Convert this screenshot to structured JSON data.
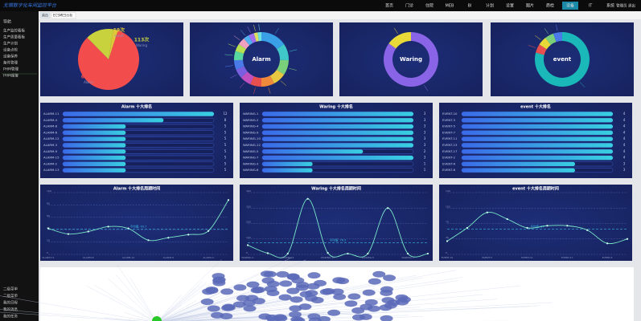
{
  "nav": {
    "title": "无锡数字化车间监控平台",
    "items": [
      "首页",
      "门诊",
      "住院",
      "MEB",
      "BI",
      "计划",
      "设置",
      "图片",
      "质检",
      "设备",
      "IT",
      "系统"
    ],
    "active": 9,
    "user": "管理员 退出"
  },
  "sidebar": {
    "header": "导航",
    "items": [
      "生产监控看板",
      "生产质量看板",
      "生产计划",
      "设备点检",
      "设备保养",
      "备件管理",
      "PHM管理",
      "PHM报警"
    ],
    "footer": [
      "二级菜单",
      "二级菜单",
      "我的日程",
      "我的消息",
      "我的任务"
    ]
  },
  "tabs": [
    "首页",
    "ECSMES分析"
  ],
  "pie": {
    "categories": [
      "Alarm",
      "Waring",
      "event"
    ],
    "values": [
      630,
      113,
      19
    ],
    "value_labels": [
      "630次",
      "113次",
      "19次"
    ],
    "colors": [
      "#f24c4c",
      "#c8d23c",
      "#e0c838"
    ]
  },
  "donuts": [
    {
      "title": "Alarm",
      "values": [
        14,
        9,
        8,
        7,
        7,
        6,
        6,
        5,
        5,
        5,
        4,
        4,
        3,
        3,
        2,
        2
      ],
      "colors": [
        "#3aa0e8",
        "#40c8c8",
        "#7ad07a",
        "#e8c840",
        "#f08a3a",
        "#e85050",
        "#c050c0",
        "#7a60e0",
        "#4a7ae8",
        "#58d8a0",
        "#b8e050",
        "#f0a0c0",
        "#50b0f0",
        "#a070f0",
        "#e0e060",
        "#70e0e0"
      ]
    },
    {
      "title": "Waring",
      "values": [
        96,
        17
      ],
      "colors": [
        "#8a64e6",
        "#e8d838"
      ]
    },
    {
      "title": "event",
      "values": [
        15,
        1,
        1,
        1,
        1
      ],
      "colors": [
        "#1ab8b8",
        "#e85050",
        "#e8d838",
        "#7ad07a",
        "#4a7ae8"
      ]
    }
  ],
  "rankings": [
    {
      "title": "Alarm 十大排名",
      "categories": [
        "ALARM-11",
        "ALARM-4",
        "ALARM-8",
        "ALARM-6",
        "ALARM-12",
        "ALARM-3",
        "ALARM-9",
        "ALARM-15",
        "ALARM-2",
        "ALARM-13"
      ],
      "values": [
        12,
        8,
        5,
        5,
        5,
        5,
        5,
        5,
        5,
        5
      ]
    },
    {
      "title": "Waring 十大排名",
      "categories": [
        "WARING-1",
        "WARING-2",
        "WARING-4",
        "WARING-9",
        "WARING-10",
        "WARING-12",
        "WARING-5",
        "WARING-7",
        "WARING-3",
        "WARING-6"
      ],
      "values": [
        3,
        3,
        3,
        3,
        3,
        3,
        2,
        3,
        1,
        1
      ]
    },
    {
      "title": "event 十大排名",
      "categories": [
        "EVENT-10",
        "EVENT-3",
        "EVENT-5",
        "EVENT-7",
        "EVENT-11",
        "EVENT-13",
        "EVENT-17",
        "EVENT-2",
        "EVENT-6",
        "EVENT-8"
      ],
      "values": [
        4,
        4,
        4,
        4,
        4,
        4,
        4,
        4,
        3,
        3
      ]
    }
  ],
  "trends": [
    {
      "title": "Alarm 十大排名周期时间",
      "values": [
        42,
        33,
        37,
        45,
        42,
        23,
        27,
        32,
        38,
        88
      ],
      "ylim": [
        0,
        100
      ],
      "yticks": [
        0,
        20,
        40,
        60,
        80,
        100
      ],
      "average": {
        "value": 40.7,
        "label": "平均值: 40.7"
      }
    },
    {
      "title": "Waring 十大排名周期时间",
      "values": [
        60,
        8,
        5,
        360,
        10,
        5,
        5,
        300,
        5,
        5
      ],
      "ylim": [
        0,
        400
      ],
      "yticks": [
        0,
        100,
        200,
        300,
        400
      ],
      "average": {
        "value": 76.3,
        "label": "平均值: 76.3"
      }
    },
    {
      "title": "event 十大排名周期时间",
      "values": [
        30,
        60,
        95,
        80,
        60,
        65,
        65,
        55,
        25,
        35
      ],
      "ylim": [
        0,
        140
      ],
      "yticks": [
        0,
        35,
        70,
        105,
        140
      ],
      "average": {
        "value": 57,
        "label": "平均值: 57"
      }
    }
  ]
}
